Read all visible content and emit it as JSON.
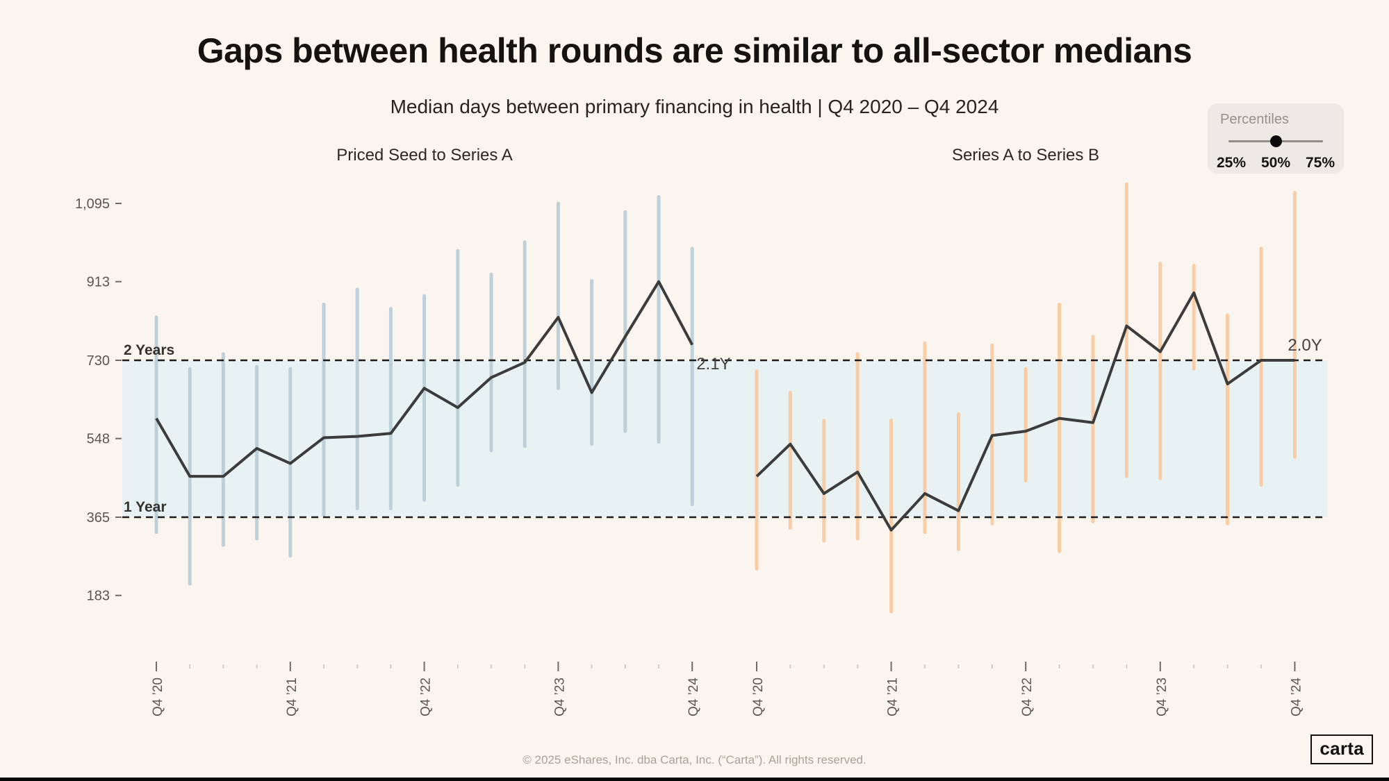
{
  "page": {
    "title": "Gaps between health rounds are similar to all-sector medians",
    "subtitle": "Median days between primary financing in health  |  Q4 2020 – Q4 2024",
    "footer": "© 2025 eShares, Inc. dba Carta, Inc. (“Carta”). All rights reserved.",
    "logo": "carta",
    "background": "#faf5ee"
  },
  "percentiles": {
    "label": "Percentiles",
    "options": [
      "25%",
      "50%",
      "75%"
    ],
    "selected": "50%"
  },
  "chart_data": {
    "type": "line",
    "unit": "days between rounds",
    "ylim": [
      130,
      1160
    ],
    "yticks": [
      {
        "label": "1,095",
        "value": 1095
      },
      {
        "label": "913",
        "value": 913
      },
      {
        "label": "730",
        "value": 730
      },
      {
        "label": "548",
        "value": 548
      },
      {
        "label": "365",
        "value": 365
      },
      {
        "label": "183",
        "value": 183
      }
    ],
    "reference_lines": [
      {
        "label": "2 Years",
        "value": 730
      },
      {
        "label": "1 Year",
        "value": 365
      }
    ],
    "band": {
      "from": 365,
      "to": 730,
      "color": "#e9f2f2"
    },
    "x_tick_labels": [
      "Q4 ’20",
      "Q4 ’21",
      "Q4 ’22",
      "Q4 ’23",
      "Q4 ’24"
    ],
    "points_per_panel": 17,
    "labeled_every_n_quarters": 4,
    "panels": [
      {
        "title": "Priced Seed to Series A",
        "bar_color": "#b8cdd8",
        "line_color": "#3c3c3c",
        "end_label": "2.1Y",
        "median": [
          595,
          460,
          460,
          525,
          490,
          550,
          553,
          560,
          665,
          620,
          690,
          725,
          830,
          655,
          785,
          913,
          766
        ],
        "p25": [
          330,
          210,
          300,
          315,
          275,
          370,
          385,
          385,
          405,
          440,
          520,
          530,
          665,
          535,
          565,
          540,
          395
        ],
        "p75": [
          830,
          710,
          745,
          715,
          710,
          860,
          895,
          850,
          880,
          985,
          930,
          1005,
          1095,
          915,
          1075,
          1110,
          990
        ]
      },
      {
        "title": "Series A to Series B",
        "bar_color": "#f7c9a1",
        "line_color": "#3c3c3c",
        "end_label": "2.0Y",
        "median": [
          460,
          535,
          420,
          470,
          335,
          420,
          380,
          555,
          565,
          595,
          585,
          810,
          750,
          887,
          675,
          730,
          730
        ],
        "p25": [
          245,
          340,
          310,
          315,
          145,
          330,
          290,
          350,
          450,
          285,
          355,
          460,
          455,
          710,
          350,
          440,
          505
        ],
        "p75": [
          705,
          655,
          590,
          745,
          590,
          770,
          605,
          765,
          710,
          860,
          785,
          1140,
          955,
          950,
          835,
          990,
          1120
        ]
      }
    ]
  }
}
